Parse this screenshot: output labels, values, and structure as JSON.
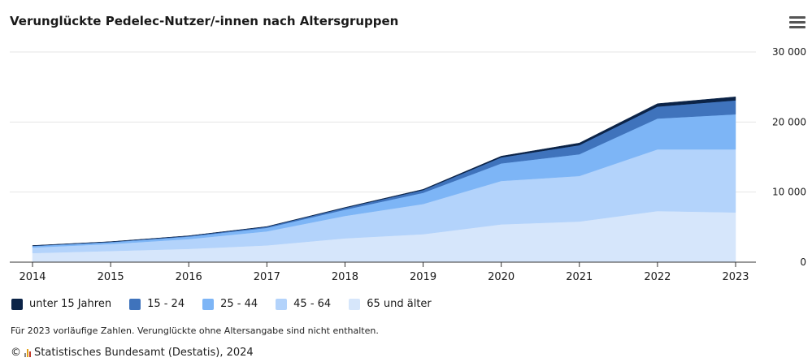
{
  "title": "Verunglückte Pedelec-Nutzer/-innen nach Altersgruppen",
  "menu_icon": "hamburger-menu-icon",
  "footnote": "Für 2023 vorläufige Zahlen. Verunglückte ohne Altersangabe sind nicht enthalten.",
  "source": {
    "copyright": "©",
    "text": "Statistisches Bundesamt (Destatis), 2024",
    "logo_icon": "destatis-logo-icon"
  },
  "chart_data": {
    "type": "area",
    "stacked": true,
    "x": [
      "2014",
      "2015",
      "2016",
      "2017",
      "2018",
      "2019",
      "2020",
      "2021",
      "2022",
      "2023"
    ],
    "ylim": [
      0,
      30000
    ],
    "yticks": [
      "0",
      "10 000",
      "20 000",
      "30 000"
    ],
    "y_axis_position": "right",
    "grid": true,
    "legend_position": "bottom-left",
    "series": [
      {
        "name": "65 und älter",
        "color": "#d6e6fb",
        "values": [
          1300,
          1600,
          1900,
          2400,
          3400,
          4000,
          5400,
          5800,
          7300,
          7100
        ]
      },
      {
        "name": "45 - 64",
        "color": "#b3d3fb",
        "values": [
          800,
          1000,
          1400,
          2000,
          3200,
          4300,
          6200,
          6500,
          8800,
          9000
        ]
      },
      {
        "name": "25 - 44",
        "color": "#7db5f6",
        "values": [
          200,
          250,
          350,
          500,
          900,
          1600,
          2500,
          3100,
          4400,
          5000
        ]
      },
      {
        "name": "15 - 24",
        "color": "#3f73bc",
        "values": [
          50,
          60,
          90,
          150,
          250,
          400,
          850,
          1300,
          1700,
          2000
        ]
      },
      {
        "name": "unter 15 Jahren",
        "color": "#0b2347",
        "values": [
          20,
          25,
          30,
          40,
          60,
          90,
          180,
          300,
          420,
          500
        ]
      }
    ],
    "legend_order": [
      "unter 15 Jahren",
      "15 - 24",
      "25 - 44",
      "45 - 64",
      "65 und älter"
    ]
  }
}
